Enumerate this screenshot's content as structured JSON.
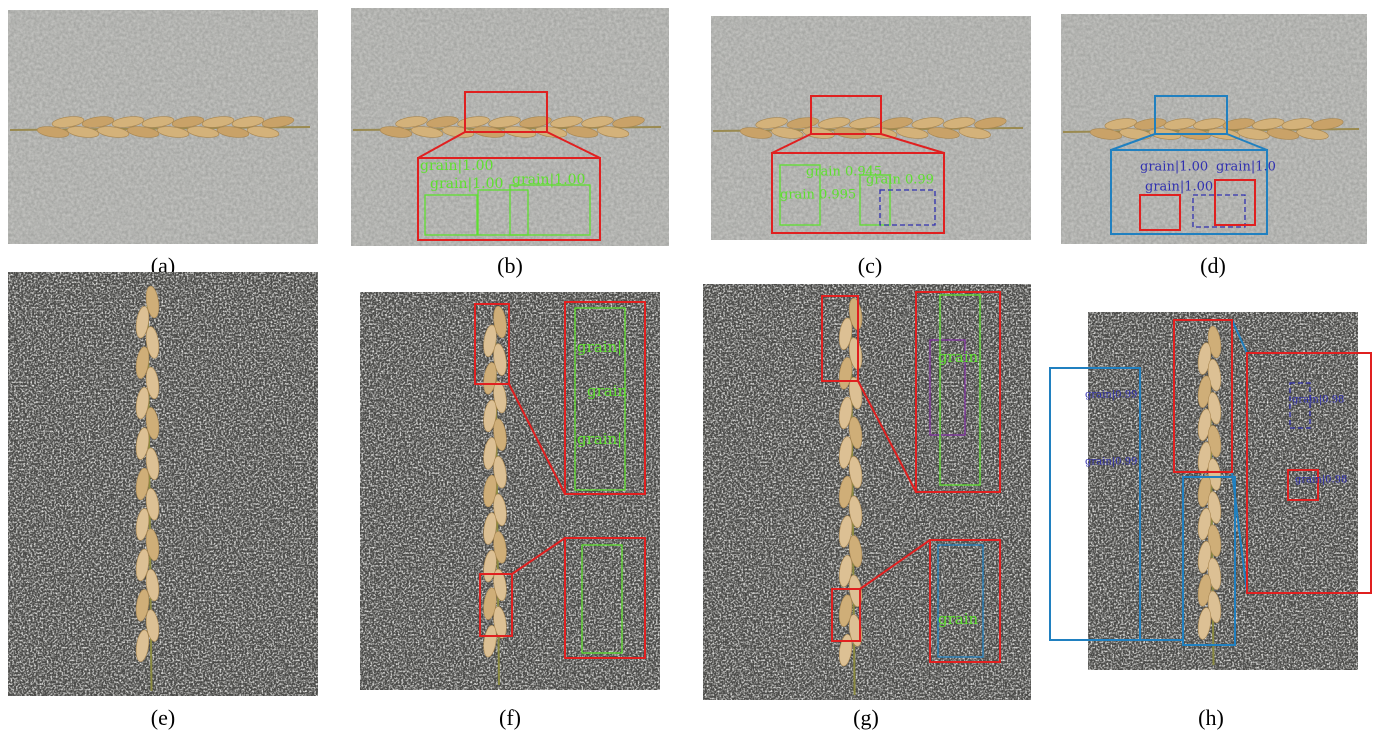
{
  "panels": [
    {
      "caption": "(a)",
      "labels": []
    },
    {
      "caption": "(b)",
      "labels": [
        "grain|1.00",
        "grain|1.00",
        "grain|1.00"
      ]
    },
    {
      "caption": "(c)",
      "labels": [
        "grain 0.945",
        "grain 0.995",
        "grain 0.99"
      ]
    },
    {
      "caption": "(d)",
      "labels": [
        "grain|1.00",
        "grain|1.00",
        "grain|1.0"
      ]
    },
    {
      "caption": "(e)",
      "labels": []
    },
    {
      "caption": "(f)",
      "labels": [
        "grain|",
        "grain",
        "grain|"
      ]
    },
    {
      "caption": "(g)",
      "labels": [
        "grain",
        "grain"
      ]
    },
    {
      "caption": "(h)",
      "labels": [
        "grain|0.99",
        "grain|0.99",
        "grain|0.98",
        "grain|0.98"
      ]
    }
  ]
}
